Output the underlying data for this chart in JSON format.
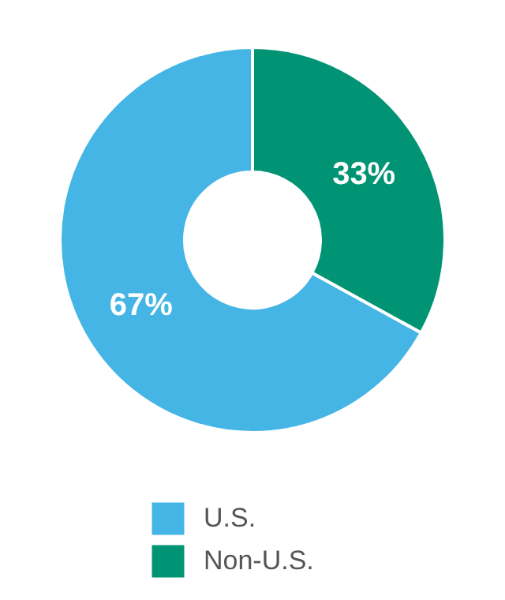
{
  "chart_data": {
    "type": "donut",
    "categories": [
      "U.S.",
      "Non-U.S."
    ],
    "values": [
      67,
      33
    ],
    "colors": [
      "#45b5e6",
      "#009474"
    ],
    "value_labels": [
      "67%",
      "33%"
    ],
    "legend": "bottom"
  }
}
